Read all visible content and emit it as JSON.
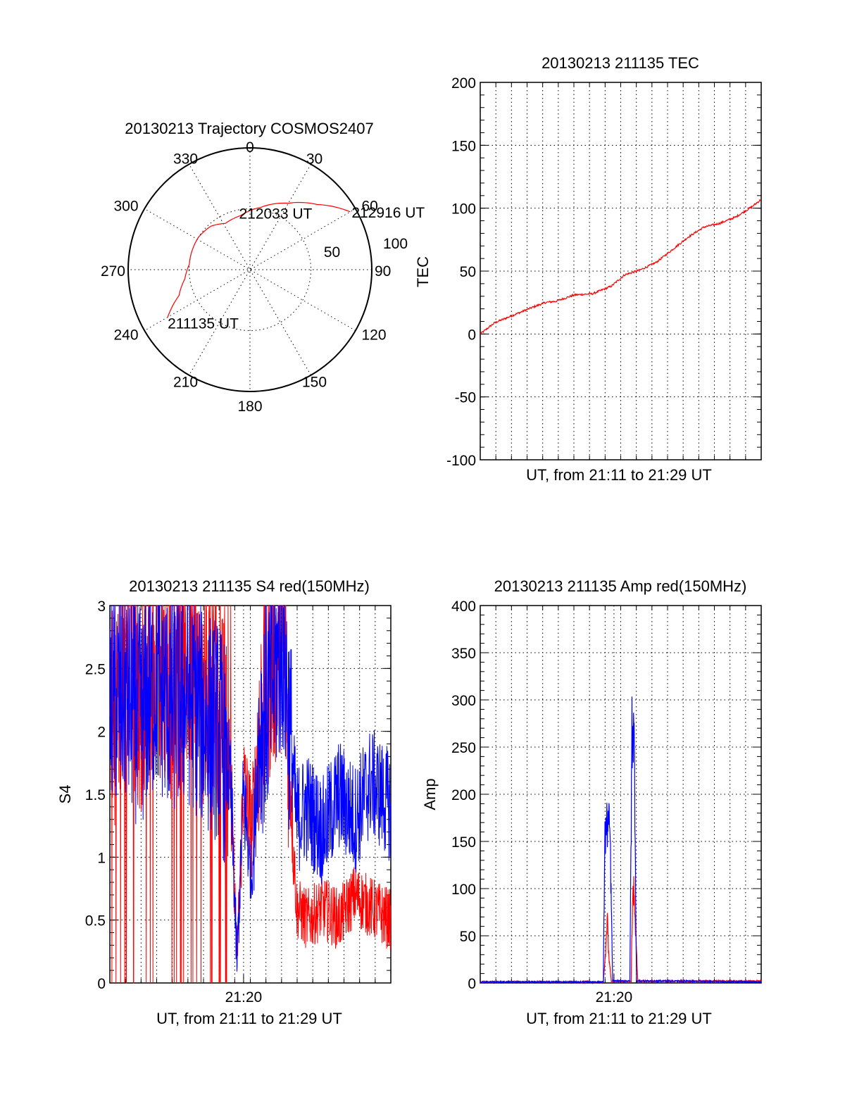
{
  "colors": {
    "red": "#ff0000",
    "blue": "#0000ff",
    "axis": "#000000",
    "background": "#ffffff"
  },
  "chart_data": [
    {
      "id": "trajectory",
      "type": "polar",
      "title": "20130213 Trajectory COSMOS2407",
      "azimuth_labels": [
        "0",
        "30",
        "60",
        "90",
        "120",
        "150",
        "180",
        "210",
        "240",
        "270",
        "300",
        "330"
      ],
      "radial_labels": [
        "50",
        "100"
      ],
      "radial_max": 100,
      "grid": true,
      "series": [
        {
          "color": "#ff0000",
          "points": [
            {
              "az": 240,
              "r": 78
            },
            {
              "az": 250,
              "r": 62
            },
            {
              "az": 262,
              "r": 54
            },
            {
              "az": 275,
              "r": 50
            },
            {
              "az": 288,
              "r": 50
            },
            {
              "az": 302,
              "r": 50
            },
            {
              "az": 318,
              "r": 48
            },
            {
              "az": 332,
              "r": 43
            },
            {
              "az": 350,
              "r": 45
            },
            {
              "az": 10,
              "r": 52
            },
            {
              "az": 30,
              "r": 63
            },
            {
              "az": 46,
              "r": 77
            },
            {
              "az": 60,
              "r": 95
            }
          ]
        }
      ],
      "annotations": [
        {
          "text": "211135 UT",
          "az": 240,
          "r": 78
        },
        {
          "text": "212033 UT",
          "az": 350,
          "r": 45
        },
        {
          "text": "212916 UT",
          "az": 60,
          "r": 95
        }
      ]
    },
    {
      "id": "tec",
      "type": "line",
      "title": "20130213 211135 TEC",
      "xlabel": "UT, from 21:11 to 21:29 UT",
      "ylabel": "TEC",
      "xlim": [
        "21:11:35",
        "21:29:16"
      ],
      "ylim": [
        -100,
        200
      ],
      "yticks": [
        "200",
        "150",
        "100",
        "50",
        "0",
        "-50",
        "-100"
      ],
      "grid": true,
      "series": [
        {
          "color": "#ff0000",
          "x": [
            "21:11:35",
            "21:12:30",
            "21:13:40",
            "21:14:50",
            "21:15:40",
            "21:16:20",
            "21:17:30",
            "21:18:40",
            "21:19:50",
            "21:20:40",
            "21:21:40",
            "21:22:40",
            "21:23:40",
            "21:24:40",
            "21:25:40",
            "21:26:40",
            "21:27:40",
            "21:28:40",
            "21:29:16"
          ],
          "values": [
            0,
            9,
            15,
            21,
            25,
            26,
            31,
            32,
            38,
            47,
            51,
            57,
            67,
            77,
            85,
            88,
            93,
            101,
            107
          ]
        }
      ]
    },
    {
      "id": "s4",
      "type": "line",
      "title": "20130213 211135 S4 red(150MHz)",
      "xlabel": "UT, from 21:11 to 21:29 UT",
      "ylabel": "S4",
      "xlim": [
        "21:11:35",
        "21:29:16"
      ],
      "ylim": [
        0,
        3
      ],
      "xticks": [
        "21:20"
      ],
      "yticks": [
        "3",
        "2.5",
        "2",
        "1.5",
        "1",
        "0.5",
        "0"
      ],
      "grid": true,
      "series": [
        {
          "color": "#ff0000",
          "x": [
            "21:11:35",
            "21:12:30",
            "21:13:30",
            "21:14:30",
            "21:15:30",
            "21:16:30",
            "21:17:30",
            "21:18:30",
            "21:19:10",
            "21:19:35",
            "21:20:00",
            "21:20:30",
            "21:21:00",
            "21:21:30",
            "21:22:00",
            "21:22:30",
            "21:23:20",
            "21:24:00",
            "21:25:00",
            "21:26:00",
            "21:27:00",
            "21:28:00",
            "21:29:16"
          ],
          "values": [
            2.0,
            2.4,
            2.2,
            2.6,
            2.3,
            2.5,
            2.3,
            2.2,
            1.7,
            0.2,
            1.6,
            1.2,
            2.0,
            2.4,
            2.6,
            2.8,
            0.6,
            0.5,
            0.6,
            0.5,
            0.7,
            0.6,
            0.5
          ]
        },
        {
          "color": "#0000ff",
          "x": [
            "21:11:35",
            "21:12:30",
            "21:13:30",
            "21:14:30",
            "21:15:30",
            "21:16:30",
            "21:17:30",
            "21:18:30",
            "21:19:10",
            "21:19:35",
            "21:20:00",
            "21:20:30",
            "21:21:00",
            "21:21:30",
            "21:22:00",
            "21:22:30",
            "21:23:20",
            "21:24:00",
            "21:25:00",
            "21:26:00",
            "21:27:00",
            "21:28:00",
            "21:29:16"
          ],
          "values": [
            2.2,
            2.3,
            2.1,
            2.4,
            2.2,
            2.3,
            2.1,
            2.0,
            1.6,
            0.15,
            1.5,
            0.8,
            2.0,
            2.2,
            2.5,
            2.7,
            1.3,
            1.4,
            1.2,
            1.5,
            1.3,
            1.6,
            1.4
          ]
        }
      ]
    },
    {
      "id": "amp",
      "type": "line",
      "title": "20130213 211135 Amp red(150MHz)",
      "xlabel": "UT, from 21:11 to 21:29 UT",
      "ylabel": "Amp",
      "xlim": [
        "21:11:35",
        "21:29:16"
      ],
      "ylim": [
        0,
        400
      ],
      "xticks": [
        "21:20"
      ],
      "yticks": [
        "400",
        "350",
        "300",
        "250",
        "200",
        "150",
        "100",
        "50",
        "0"
      ],
      "grid": true,
      "series": [
        {
          "color": "#ff0000",
          "x": [
            "21:11:35",
            "21:19:20",
            "21:19:30",
            "21:19:35",
            "21:19:40",
            "21:19:50",
            "21:20:30",
            "21:21:05",
            "21:21:10",
            "21:21:15",
            "21:21:20",
            "21:21:30",
            "21:24:00",
            "21:29:16"
          ],
          "values": [
            1,
            1,
            40,
            70,
            30,
            2,
            2,
            2,
            95,
            100,
            60,
            2,
            2,
            2
          ]
        },
        {
          "color": "#0000ff",
          "x": [
            "21:11:35",
            "21:19:20",
            "21:19:25",
            "21:19:35",
            "21:19:45",
            "21:19:55",
            "21:20:30",
            "21:21:00",
            "21:21:08",
            "21:21:12",
            "21:21:18",
            "21:21:25",
            "21:24:00",
            "21:29:16"
          ],
          "values": [
            1,
            1,
            150,
            170,
            160,
            2,
            2,
            2,
            270,
            280,
            230,
            2,
            2,
            1
          ]
        }
      ]
    }
  ]
}
